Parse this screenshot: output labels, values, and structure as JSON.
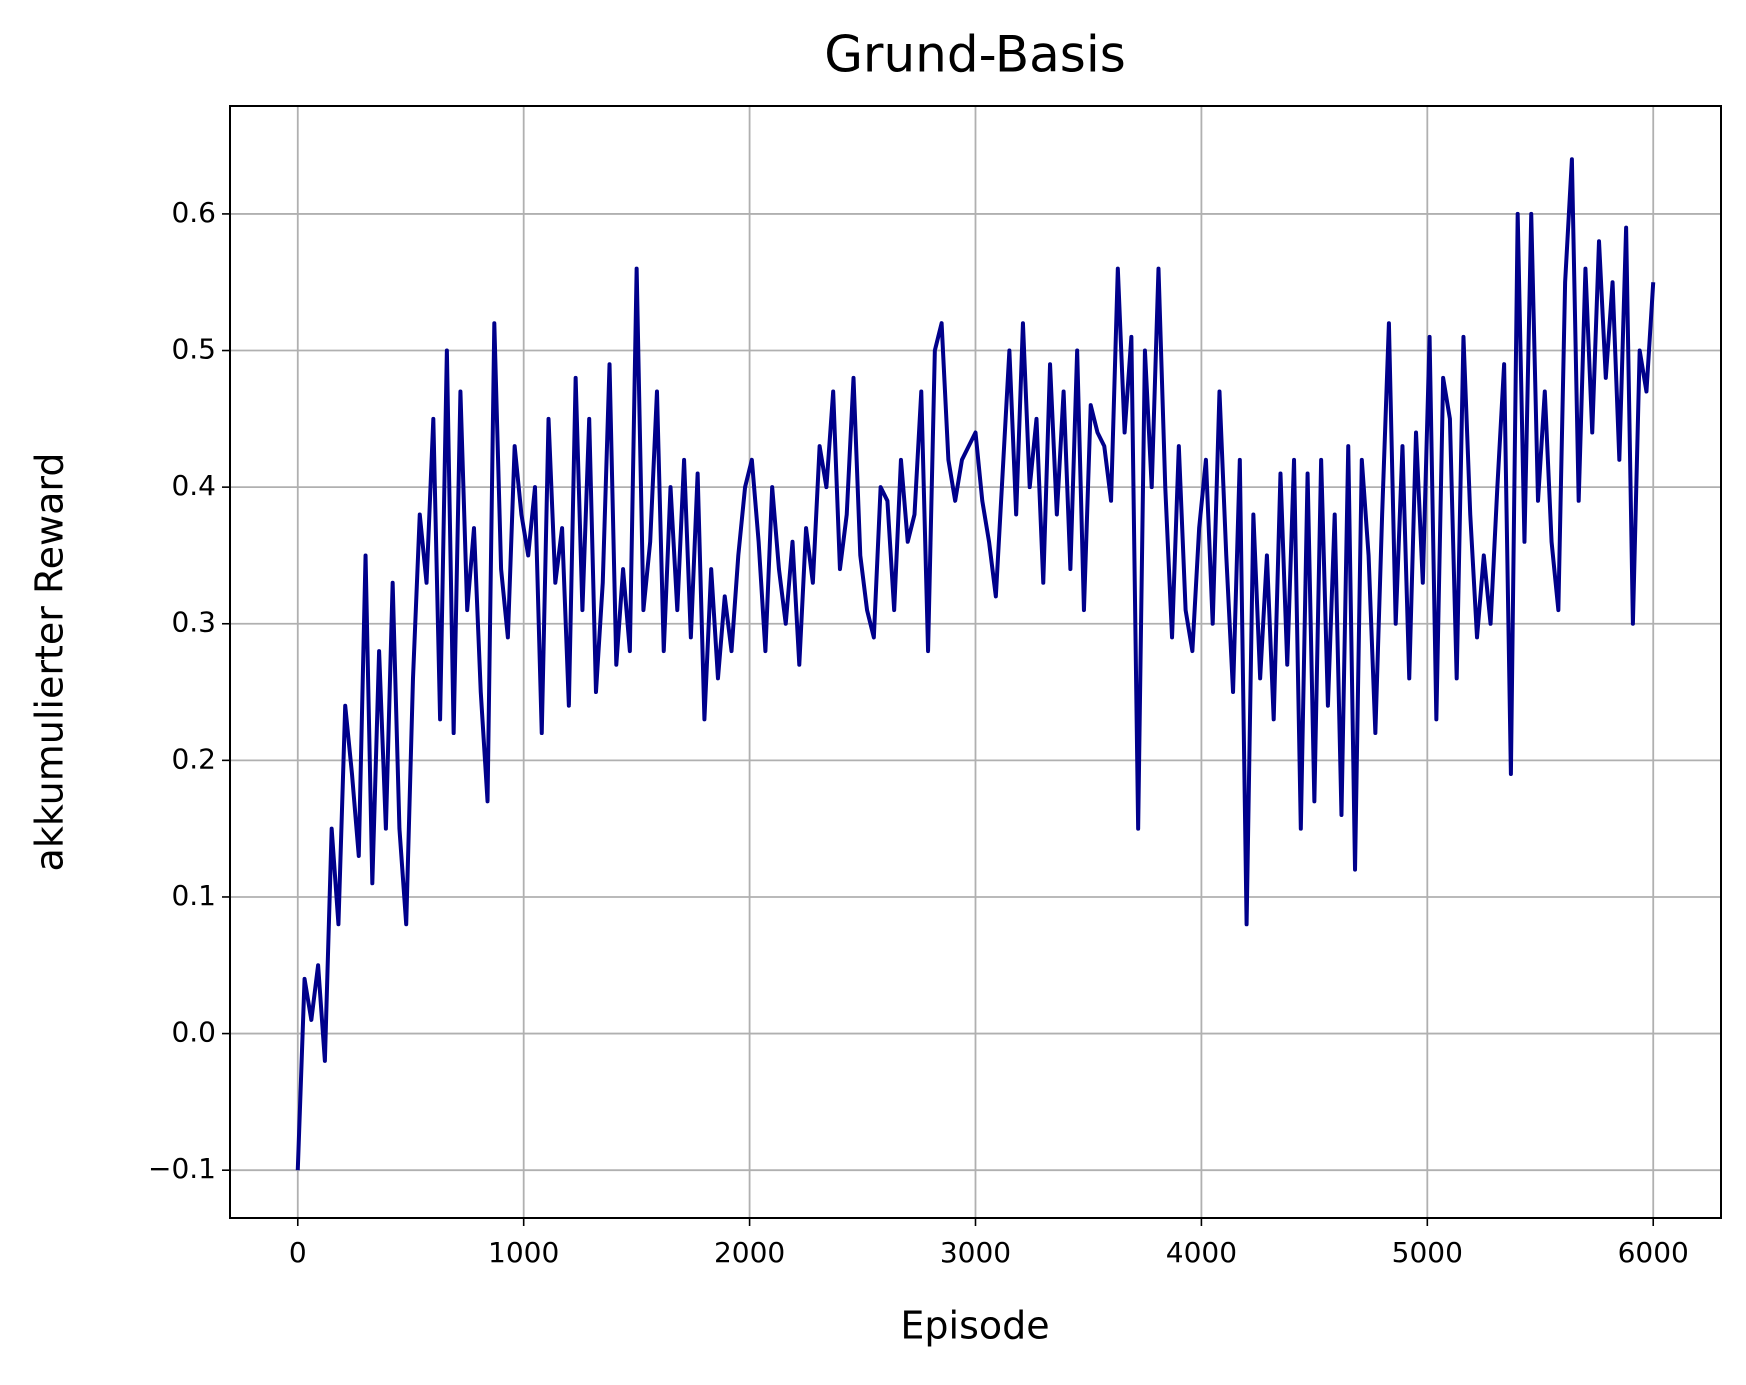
{
  "chart_data": {
    "type": "line",
    "title": "Grund-Basis",
    "x_label": "Episode",
    "y_label": "akkumulierter Reward",
    "color": "#00008b",
    "grid": true,
    "xlim": [
      -300,
      6300
    ],
    "ylim": [
      -0.135,
      0.679
    ],
    "xticks": [
      0,
      1000,
      2000,
      3000,
      4000,
      5000,
      6000
    ],
    "yticks": [
      {
        "value": -0.1,
        "label": "−0.1"
      },
      {
        "value": 0,
        "label": "0.0"
      },
      0.1,
      0.2,
      0.3,
      0.4,
      0.5,
      0.6
    ],
    "x": [
      0,
      30,
      60,
      90,
      120,
      150,
      180,
      210,
      240,
      270,
      300,
      330,
      360,
      390,
      420,
      450,
      480,
      510,
      540,
      570,
      600,
      630,
      660,
      690,
      720,
      750,
      780,
      810,
      840,
      870,
      900,
      930,
      960,
      990,
      1020,
      1050,
      1080,
      1110,
      1140,
      1170,
      1200,
      1230,
      1260,
      1290,
      1320,
      1350,
      1380,
      1410,
      1440,
      1470,
      1500,
      1530,
      1560,
      1590,
      1620,
      1650,
      1680,
      1710,
      1740,
      1770,
      1800,
      1830,
      1860,
      1890,
      1920,
      1950,
      1980,
      2010,
      2040,
      2070,
      2100,
      2130,
      2160,
      2190,
      2220,
      2250,
      2280,
      2310,
      2340,
      2370,
      2400,
      2430,
      2460,
      2490,
      2520,
      2550,
      2580,
      2610,
      2640,
      2670,
      2700,
      2730,
      2760,
      2790,
      2820,
      2850,
      2880,
      2910,
      2940,
      2970,
      3000,
      3030,
      3060,
      3090,
      3120,
      3150,
      3180,
      3210,
      3240,
      3270,
      3300,
      3330,
      3360,
      3390,
      3420,
      3450,
      3480,
      3510,
      3540,
      3570,
      3600,
      3630,
      3660,
      3690,
      3720,
      3750,
      3780,
      3810,
      3840,
      3870,
      3900,
      3930,
      3960,
      3990,
      4020,
      4050,
      4080,
      4110,
      4140,
      4170,
      4200,
      4230,
      4260,
      4290,
      4320,
      4350,
      4380,
      4410,
      4440,
      4470,
      4500,
      4530,
      4560,
      4590,
      4620,
      4650,
      4680,
      4710,
      4740,
      4770,
      4800,
      4830,
      4860,
      4890,
      4920,
      4950,
      4980,
      5010,
      5040,
      5070,
      5100,
      5130,
      5160,
      5190,
      5220,
      5250,
      5280,
      5310,
      5340,
      5370,
      5400,
      5430,
      5460,
      5490,
      5520,
      5550,
      5580,
      5610,
      5640,
      5670,
      5700,
      5730,
      5760,
      5790,
      5820,
      5850,
      5880,
      5910,
      5940,
      5970,
      6000
    ],
    "values": [
      -0.1,
      0.04,
      0.01,
      0.05,
      -0.02,
      0.15,
      0.08,
      0.24,
      0.19,
      0.13,
      0.35,
      0.11,
      0.28,
      0.15,
      0.33,
      0.15,
      0.08,
      0.26,
      0.38,
      0.33,
      0.45,
      0.23,
      0.5,
      0.22,
      0.47,
      0.31,
      0.37,
      0.25,
      0.17,
      0.52,
      0.34,
      0.29,
      0.43,
      0.38,
      0.35,
      0.4,
      0.22,
      0.45,
      0.33,
      0.37,
      0.24,
      0.48,
      0.31,
      0.45,
      0.25,
      0.33,
      0.49,
      0.27,
      0.34,
      0.28,
      0.56,
      0.31,
      0.36,
      0.47,
      0.28,
      0.4,
      0.31,
      0.42,
      0.29,
      0.41,
      0.23,
      0.34,
      0.26,
      0.32,
      0.28,
      0.35,
      0.4,
      0.42,
      0.36,
      0.28,
      0.4,
      0.34,
      0.3,
      0.36,
      0.27,
      0.37,
      0.33,
      0.43,
      0.4,
      0.47,
      0.34,
      0.38,
      0.48,
      0.35,
      0.31,
      0.29,
      0.4,
      0.39,
      0.31,
      0.42,
      0.36,
      0.38,
      0.47,
      0.28,
      0.5,
      0.52,
      0.42,
      0.39,
      0.42,
      0.43,
      0.44,
      0.39,
      0.36,
      0.32,
      0.41,
      0.5,
      0.38,
      0.52,
      0.4,
      0.45,
      0.33,
      0.49,
      0.38,
      0.47,
      0.34,
      0.5,
      0.31,
      0.46,
      0.44,
      0.43,
      0.39,
      0.56,
      0.44,
      0.51,
      0.15,
      0.5,
      0.4,
      0.56,
      0.4,
      0.29,
      0.43,
      0.31,
      0.28,
      0.37,
      0.42,
      0.3,
      0.47,
      0.35,
      0.25,
      0.42,
      0.08,
      0.38,
      0.26,
      0.35,
      0.23,
      0.41,
      0.27,
      0.42,
      0.15,
      0.41,
      0.17,
      0.42,
      0.24,
      0.38,
      0.16,
      0.43,
      0.12,
      0.42,
      0.35,
      0.22,
      0.38,
      0.52,
      0.3,
      0.43,
      0.26,
      0.44,
      0.33,
      0.51,
      0.23,
      0.48,
      0.45,
      0.26,
      0.51,
      0.38,
      0.29,
      0.35,
      0.3,
      0.4,
      0.49,
      0.19,
      0.6,
      0.36,
      0.6,
      0.39,
      0.47,
      0.36,
      0.31,
      0.55,
      0.64,
      0.39,
      0.56,
      0.44,
      0.58,
      0.48,
      0.55,
      0.42,
      0.59,
      0.3,
      0.5,
      0.47,
      0.55
    ]
  }
}
